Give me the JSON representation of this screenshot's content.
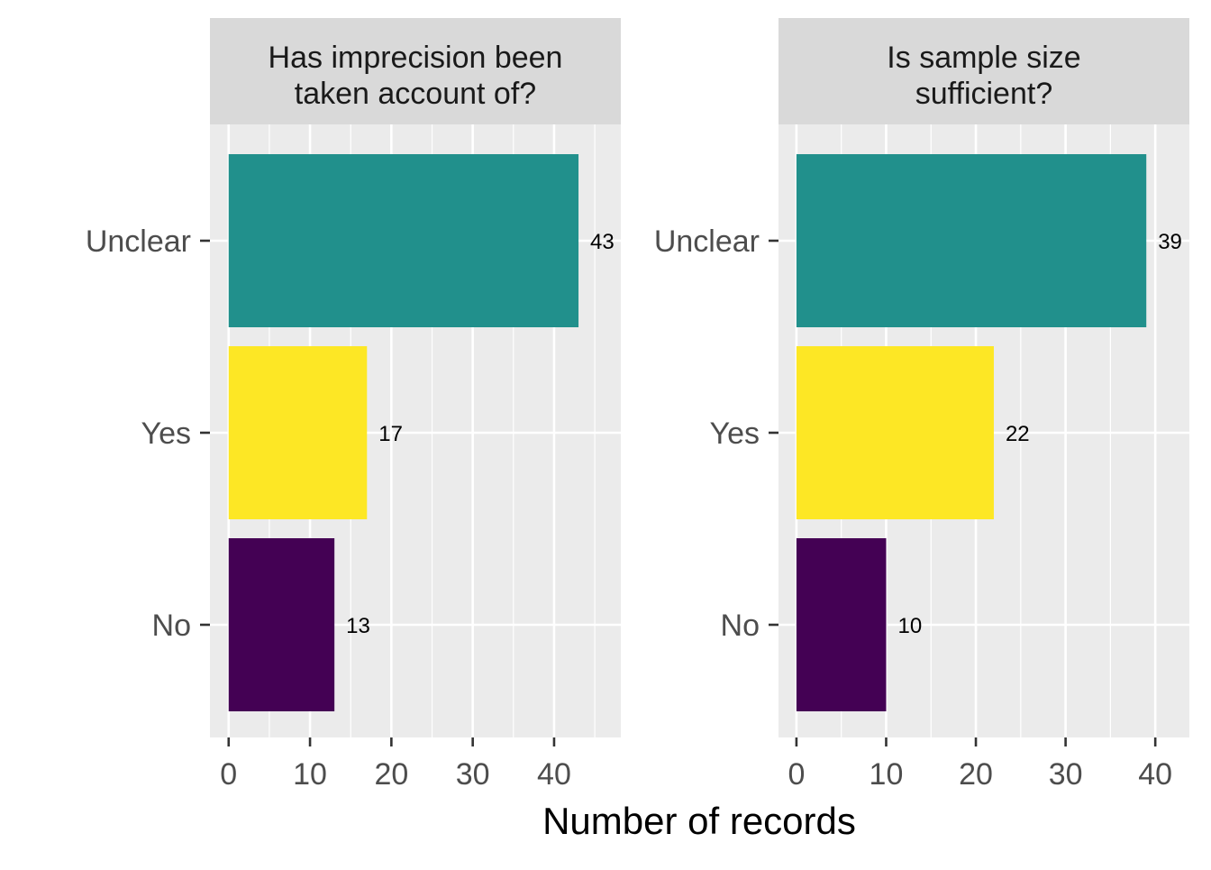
{
  "chart_data": {
    "type": "bar",
    "orientation": "horizontal",
    "xlabel": "Number of records",
    "categories": [
      "Unclear",
      "Yes",
      "No"
    ],
    "colors": {
      "Unclear": "#21908C",
      "Yes": "#FDE725",
      "No": "#440154"
    },
    "panel_background": "#EBEBEB",
    "strip_background": "#D9D9D9",
    "grid": true,
    "facets": [
      {
        "title": "Has imprecision been\ntaken account of?",
        "title_lines": [
          "Has imprecision been",
          "taken account of?"
        ],
        "values": [
          43,
          17,
          13
        ],
        "xlim": [
          -2.3,
          48.2
        ],
        "xticks": [
          0,
          10,
          20,
          30,
          40
        ]
      },
      {
        "title": "Is sample size\nsufficient?",
        "title_lines": [
          "Is sample size",
          "sufficient?"
        ],
        "values": [
          39,
          22,
          10
        ],
        "xlim": [
          -2.0,
          43.8
        ],
        "xticks": [
          0,
          10,
          20,
          30,
          40
        ]
      }
    ]
  }
}
